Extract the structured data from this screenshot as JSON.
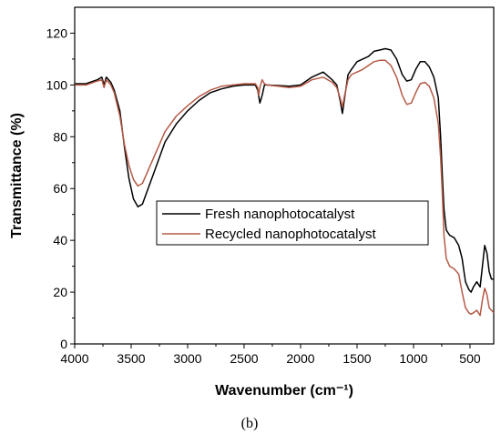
{
  "chart_data": {
    "type": "line",
    "xlabel": "Wavenumber (cm⁻¹)",
    "ylabel": "Transmittance  (%)",
    "xlim": [
      4000,
      290
    ],
    "ylim": [
      0,
      130
    ],
    "x_ticks": [
      4000,
      3500,
      3000,
      2500,
      2000,
      1500,
      1000,
      500
    ],
    "y_ticks": [
      0,
      20,
      40,
      60,
      80,
      100,
      120
    ],
    "panel_label": "(b)",
    "legend_position": "center-right",
    "grid": false,
    "series": [
      {
        "name": "Fresh nanophotocatalyst",
        "color": "#000000",
        "points": [
          [
            4000,
            100.5
          ],
          [
            3900,
            100.5
          ],
          [
            3800,
            102
          ],
          [
            3760,
            103
          ],
          [
            3740,
            100
          ],
          [
            3720,
            103
          ],
          [
            3680,
            101
          ],
          [
            3650,
            98
          ],
          [
            3600,
            90
          ],
          [
            3560,
            76
          ],
          [
            3520,
            64
          ],
          [
            3480,
            56
          ],
          [
            3440,
            53
          ],
          [
            3400,
            54
          ],
          [
            3350,
            60
          ],
          [
            3300,
            66
          ],
          [
            3250,
            72
          ],
          [
            3200,
            78
          ],
          [
            3100,
            85
          ],
          [
            3000,
            90
          ],
          [
            2900,
            94
          ],
          [
            2800,
            97
          ],
          [
            2700,
            98.5
          ],
          [
            2600,
            99.5
          ],
          [
            2500,
            100
          ],
          [
            2400,
            100
          ],
          [
            2380,
            98
          ],
          [
            2360,
            93
          ],
          [
            2340,
            96
          ],
          [
            2320,
            100
          ],
          [
            2300,
            100
          ],
          [
            2200,
            99.8
          ],
          [
            2100,
            99.5
          ],
          [
            2000,
            100
          ],
          [
            1900,
            103
          ],
          [
            1800,
            105
          ],
          [
            1720,
            102
          ],
          [
            1680,
            100
          ],
          [
            1650,
            94
          ],
          [
            1630,
            89
          ],
          [
            1610,
            95
          ],
          [
            1580,
            104
          ],
          [
            1550,
            106
          ],
          [
            1500,
            109
          ],
          [
            1450,
            110
          ],
          [
            1400,
            111
          ],
          [
            1350,
            113
          ],
          [
            1300,
            113.5
          ],
          [
            1250,
            114
          ],
          [
            1200,
            113.5
          ],
          [
            1150,
            110
          ],
          [
            1100,
            104
          ],
          [
            1060,
            101.5
          ],
          [
            1020,
            102
          ],
          [
            980,
            106
          ],
          [
            940,
            109
          ],
          [
            900,
            109
          ],
          [
            860,
            107
          ],
          [
            820,
            103
          ],
          [
            780,
            95
          ],
          [
            760,
            80
          ],
          [
            745,
            65
          ],
          [
            730,
            52
          ],
          [
            710,
            44
          ],
          [
            680,
            42
          ],
          [
            640,
            41
          ],
          [
            600,
            38
          ],
          [
            570,
            33
          ],
          [
            540,
            24
          ],
          [
            510,
            21
          ],
          [
            490,
            20
          ],
          [
            470,
            22
          ],
          [
            440,
            24
          ],
          [
            410,
            22
          ],
          [
            390,
            30
          ],
          [
            370,
            38
          ],
          [
            350,
            35
          ],
          [
            330,
            28
          ],
          [
            310,
            25
          ],
          [
            290,
            25
          ]
        ]
      },
      {
        "name": "Recycled nanophotocatalyst",
        "color": "#b55a46",
        "points": [
          [
            4000,
            100
          ],
          [
            3900,
            100
          ],
          [
            3800,
            101.5
          ],
          [
            3760,
            102
          ],
          [
            3740,
            99
          ],
          [
            3720,
            102
          ],
          [
            3680,
            100
          ],
          [
            3650,
            97
          ],
          [
            3600,
            88
          ],
          [
            3560,
            77
          ],
          [
            3520,
            69
          ],
          [
            3480,
            63.5
          ],
          [
            3440,
            61
          ],
          [
            3400,
            62
          ],
          [
            3350,
            67
          ],
          [
            3300,
            72
          ],
          [
            3250,
            77
          ],
          [
            3200,
            82
          ],
          [
            3100,
            88
          ],
          [
            3000,
            92
          ],
          [
            2900,
            95.5
          ],
          [
            2800,
            98
          ],
          [
            2700,
            99.5
          ],
          [
            2600,
            100
          ],
          [
            2500,
            100.5
          ],
          [
            2400,
            100.5
          ],
          [
            2380,
            99
          ],
          [
            2370,
            96
          ],
          [
            2360,
            99
          ],
          [
            2340,
            102
          ],
          [
            2320,
            100.5
          ],
          [
            2300,
            100
          ],
          [
            2200,
            99.5
          ],
          [
            2100,
            99
          ],
          [
            2000,
            99.5
          ],
          [
            1900,
            102
          ],
          [
            1800,
            103
          ],
          [
            1720,
            101
          ],
          [
            1680,
            99
          ],
          [
            1650,
            95
          ],
          [
            1630,
            91.5
          ],
          [
            1610,
            96
          ],
          [
            1580,
            102
          ],
          [
            1550,
            104
          ],
          [
            1500,
            105
          ],
          [
            1450,
            106
          ],
          [
            1400,
            107.5
          ],
          [
            1350,
            109
          ],
          [
            1300,
            109.5
          ],
          [
            1250,
            109.5
          ],
          [
            1200,
            107.5
          ],
          [
            1150,
            103
          ],
          [
            1100,
            96
          ],
          [
            1060,
            92.5
          ],
          [
            1020,
            93
          ],
          [
            980,
            97
          ],
          [
            940,
            100.5
          ],
          [
            900,
            101
          ],
          [
            860,
            99.5
          ],
          [
            820,
            95
          ],
          [
            780,
            85
          ],
          [
            760,
            72
          ],
          [
            745,
            58
          ],
          [
            730,
            42
          ],
          [
            710,
            33
          ],
          [
            680,
            30
          ],
          [
            640,
            29
          ],
          [
            600,
            27
          ],
          [
            570,
            20
          ],
          [
            540,
            14
          ],
          [
            510,
            12
          ],
          [
            490,
            11.5
          ],
          [
            470,
            12
          ],
          [
            440,
            13
          ],
          [
            410,
            11
          ],
          [
            390,
            17
          ],
          [
            370,
            21.5
          ],
          [
            350,
            19
          ],
          [
            330,
            14
          ],
          [
            310,
            13
          ],
          [
            290,
            12
          ]
        ]
      }
    ]
  }
}
